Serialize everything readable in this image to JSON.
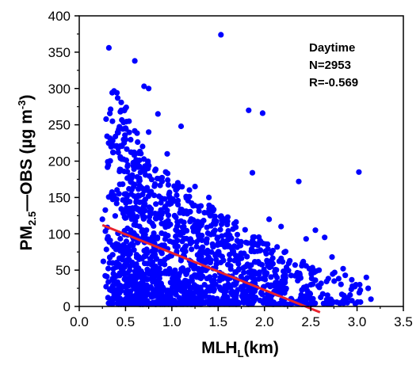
{
  "chart_data": {
    "type": "scatter",
    "xlabel": {
      "main": "MLH",
      "sub": "L",
      "unit": "(km)"
    },
    "ylabel": {
      "main": "PM",
      "sub": "2.5",
      "rest": "—OBS (µg m",
      "sup": "-3",
      "close": ")"
    },
    "xlim": [
      0.0,
      3.5
    ],
    "ylim": [
      0,
      400
    ],
    "x_ticks": [
      "0.0",
      "0.5",
      "1.0",
      "1.5",
      "2.0",
      "2.5",
      "3.0",
      "3.5"
    ],
    "y_ticks": [
      "0",
      "50",
      "100",
      "150",
      "200",
      "250",
      "300",
      "350",
      "400"
    ],
    "grid": false,
    "annotations": [
      "Daytime",
      "N=2953",
      "R=-0.569"
    ],
    "point_color": "#0000ff",
    "fit_color": "#e8232d",
    "fit_line": {
      "x": [
        0.25,
        2.6
      ],
      "y": [
        112,
        -8
      ]
    },
    "outliers": [
      [
        1.53,
        374
      ],
      [
        0.32,
        356
      ],
      [
        0.6,
        338
      ],
      [
        0.7,
        303
      ],
      [
        0.75,
        300
      ],
      [
        1.83,
        270
      ],
      [
        1.98,
        266
      ],
      [
        0.85,
        265
      ],
      [
        1.1,
        248
      ],
      [
        0.75,
        240
      ],
      [
        1.87,
        184
      ],
      [
        2.37,
        172
      ],
      [
        3.02,
        185
      ],
      [
        2.55,
        105
      ],
      [
        2.65,
        95
      ],
      [
        2.45,
        93
      ],
      [
        2.73,
        68
      ],
      [
        3.1,
        40
      ],
      [
        3.12,
        25
      ],
      [
        3.15,
        10
      ],
      [
        0.25,
        120
      ],
      [
        0.26,
        62
      ],
      [
        0.95,
        210
      ],
      [
        1.25,
        165
      ],
      [
        1.4,
        150
      ],
      [
        2.05,
        120
      ],
      [
        2.18,
        110
      ],
      [
        2.85,
        52
      ],
      [
        2.95,
        28
      ],
      [
        2.9,
        12
      ]
    ],
    "cloud_envelope": {
      "x": [
        0.28,
        0.4,
        0.55,
        0.7,
        0.9,
        1.1,
        1.3,
        1.5,
        1.7,
        1.9,
        2.1,
        2.3,
        2.5,
        2.7,
        2.9,
        3.05
      ],
      "y_upper": [
        290,
        300,
        270,
        215,
        190,
        170,
        150,
        130,
        118,
        100,
        85,
        72,
        60,
        50,
        42,
        35
      ],
      "y_lower": [
        5,
        3,
        3,
        3,
        3,
        3,
        3,
        3,
        3,
        3,
        3,
        3,
        3,
        3,
        3,
        4
      ],
      "density": [
        70,
        180,
        200,
        190,
        170,
        150,
        140,
        120,
        100,
        80,
        60,
        45,
        30,
        20,
        12,
        6
      ]
    }
  }
}
